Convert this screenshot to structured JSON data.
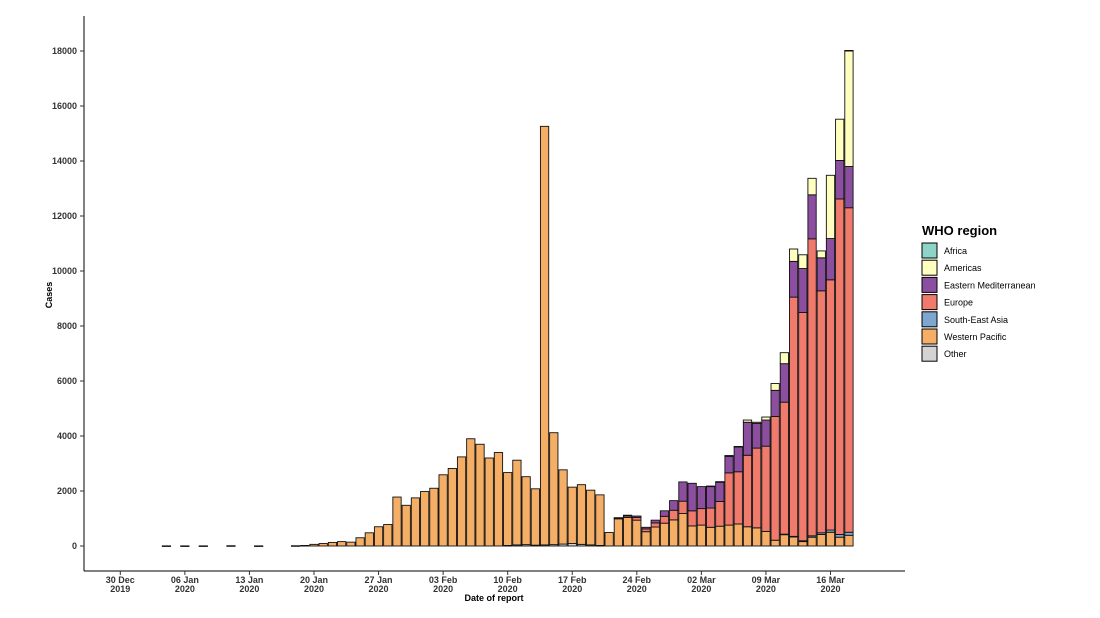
{
  "chart_data": {
    "type": "bar",
    "stacked": true,
    "title": "",
    "xlabel": "Date of report",
    "ylabel": "Cases",
    "ylim": [
      -900,
      19300
    ],
    "y_ticks": [
      0,
      2000,
      4000,
      6000,
      8000,
      10000,
      12000,
      14000,
      16000,
      18000
    ],
    "x_tick_labels": [
      {
        "day": 0,
        "line1": "30 Dec",
        "line2": "2019"
      },
      {
        "day": 7,
        "line1": "06 Jan",
        "line2": "2020"
      },
      {
        "day": 14,
        "line1": "13 Jan",
        "line2": "2020"
      },
      {
        "day": 21,
        "line1": "20 Jan",
        "line2": "2020"
      },
      {
        "day": 28,
        "line1": "27 Jan",
        "line2": "2020"
      },
      {
        "day": 35,
        "line1": "03 Feb",
        "line2": "2020"
      },
      {
        "day": 42,
        "line1": "10 Feb",
        "line2": "2020"
      },
      {
        "day": 49,
        "line1": "17 Feb",
        "line2": "2020"
      },
      {
        "day": 56,
        "line1": "24 Feb",
        "line2": "2020"
      },
      {
        "day": 63,
        "line1": "02 Mar",
        "line2": "2020"
      },
      {
        "day": 70,
        "line1": "09 Mar",
        "line2": "2020"
      },
      {
        "day": 77,
        "line1": "16 Mar",
        "line2": "2020"
      }
    ],
    "categories": [
      "Jan 04",
      "Jan 05",
      "Jan 06",
      "Jan 07",
      "Jan 08",
      "Jan 09",
      "Jan 10",
      "Jan 11",
      "Jan 12",
      "Jan 13",
      "Jan 14",
      "Jan 15",
      "Jan 16",
      "Jan 17",
      "Jan 18",
      "Jan 19",
      "Jan 20",
      "Jan 21",
      "Jan 22",
      "Jan 23",
      "Jan 24",
      "Jan 25",
      "Jan 26",
      "Jan 27",
      "Jan 28",
      "Jan 29",
      "Jan 30",
      "Jan 31",
      "Feb 01",
      "Feb 02",
      "Feb 03",
      "Feb 04",
      "Feb 05",
      "Feb 06",
      "Feb 07",
      "Feb 08",
      "Feb 09",
      "Feb 10",
      "Feb 11",
      "Feb 12",
      "Feb 13",
      "Feb 14",
      "Feb 15",
      "Feb 16",
      "Feb 17",
      "Feb 18",
      "Feb 19",
      "Feb 20",
      "Feb 21",
      "Feb 22",
      "Feb 23",
      "Feb 24",
      "Feb 25",
      "Feb 26",
      "Feb 27",
      "Feb 28",
      "Feb 29",
      "Mar 01",
      "Mar 02",
      "Mar 03",
      "Mar 04",
      "Mar 05",
      "Mar 06",
      "Mar 07",
      "Mar 08",
      "Mar 09",
      "Mar 10",
      "Mar 11",
      "Mar 12",
      "Mar 13",
      "Mar 14",
      "Mar 15",
      "Mar 16",
      "Mar 17",
      "Mar 18"
    ],
    "series": [
      {
        "name": "Africa",
        "color": "#8DD3C7",
        "values": [
          0,
          0,
          0,
          0,
          0,
          0,
          0,
          0,
          0,
          0,
          0,
          0,
          0,
          0,
          0,
          0,
          0,
          0,
          0,
          0,
          0,
          0,
          0,
          0,
          0,
          0,
          0,
          0,
          0,
          0,
          0,
          0,
          0,
          0,
          0,
          0,
          0,
          0,
          0,
          0,
          0,
          0,
          0,
          0,
          0,
          0,
          0,
          0,
          0,
          0,
          0,
          0,
          0,
          0,
          0,
          0,
          0,
          0,
          0,
          0,
          0,
          0,
          0,
          0,
          0,
          0,
          0,
          0,
          0,
          0,
          0,
          0,
          0,
          0,
          20
        ]
      },
      {
        "name": "Americas",
        "color": "#FFFFBF",
        "values": [
          0,
          0,
          0,
          0,
          0,
          0,
          0,
          0,
          0,
          0,
          0,
          0,
          0,
          0,
          0,
          0,
          0,
          0,
          0,
          0,
          0,
          0,
          0,
          0,
          0,
          0,
          0,
          0,
          0,
          0,
          0,
          0,
          0,
          0,
          0,
          0,
          0,
          0,
          0,
          0,
          0,
          0,
          0,
          0,
          0,
          0,
          0,
          0,
          0,
          0,
          0,
          0,
          0,
          0,
          0,
          0,
          0,
          0,
          0,
          20,
          20,
          30,
          20,
          80,
          40,
          110,
          250,
          400,
          450,
          500,
          600,
          250,
          2300,
          1500,
          4200
        ]
      },
      {
        "name": "Eastern Mediterranean",
        "color": "#8C4FA0",
        "values": [
          0,
          0,
          0,
          0,
          0,
          0,
          0,
          0,
          0,
          0,
          0,
          0,
          0,
          0,
          0,
          0,
          0,
          0,
          0,
          0,
          0,
          0,
          0,
          0,
          0,
          0,
          0,
          0,
          0,
          0,
          0,
          0,
          0,
          0,
          0,
          0,
          0,
          0,
          0,
          0,
          0,
          0,
          0,
          0,
          0,
          0,
          0,
          0,
          0,
          20,
          30,
          50,
          60,
          100,
          200,
          350,
          700,
          1000,
          800,
          780,
          700,
          600,
          900,
          1200,
          900,
          950,
          950,
          1400,
          1300,
          1600,
          1600,
          1200,
          1500,
          1400,
          1500
        ]
      },
      {
        "name": "Europe",
        "color": "#F07A6C",
        "values": [
          0,
          0,
          0,
          0,
          0,
          0,
          0,
          0,
          0,
          0,
          0,
          0,
          0,
          0,
          0,
          0,
          0,
          0,
          0,
          0,
          0,
          0,
          0,
          0,
          0,
          0,
          0,
          0,
          0,
          0,
          0,
          0,
          0,
          0,
          0,
          0,
          0,
          0,
          0,
          0,
          0,
          0,
          0,
          0,
          0,
          0,
          0,
          0,
          0,
          20,
          50,
          100,
          100,
          150,
          250,
          350,
          450,
          550,
          600,
          700,
          900,
          1900,
          1900,
          2600,
          2900,
          3100,
          4500,
          4800,
          8700,
          8300,
          10800,
          8800,
          9100,
          12200,
          11800
        ]
      },
      {
        "name": "South-East Asia",
        "color": "#7FA6CF",
        "values": [
          0,
          0,
          0,
          0,
          0,
          0,
          0,
          0,
          0,
          0,
          0,
          0,
          0,
          0,
          0,
          0,
          0,
          0,
          0,
          0,
          0,
          0,
          0,
          0,
          0,
          0,
          0,
          0,
          0,
          0,
          0,
          0,
          0,
          0,
          0,
          0,
          0,
          0,
          0,
          0,
          0,
          0,
          0,
          0,
          0,
          0,
          0,
          0,
          0,
          0,
          0,
          0,
          0,
          0,
          0,
          0,
          0,
          0,
          0,
          0,
          0,
          0,
          0,
          0,
          0,
          0,
          0,
          10,
          20,
          30,
          50,
          60,
          80,
          100,
          110
        ]
      },
      {
        "name": "Western Pacific",
        "color": "#F5AE66",
        "values": [
          5,
          0,
          5,
          0,
          5,
          0,
          0,
          10,
          0,
          0,
          5,
          0,
          0,
          0,
          10,
          20,
          60,
          90,
          130,
          160,
          140,
          300,
          480,
          700,
          780,
          1780,
          1480,
          1750,
          1980,
          2100,
          2590,
          2820,
          3240,
          3900,
          3700,
          3200,
          3400,
          2650,
          3080,
          2470,
          2050,
          15220,
          4070,
          2700,
          2050,
          2170,
          1990,
          1840,
          490,
          990,
          1040,
          940,
          520,
          690,
          830,
          950,
          1180,
          730,
          760,
          680,
          720,
          760,
          800,
          700,
          660,
          530,
          210,
          420,
          330,
          160,
          320,
          420,
          500,
          320,
          390
        ]
      },
      {
        "name": "Other",
        "color": "#D3D3D3",
        "values": [
          0,
          0,
          0,
          0,
          0,
          0,
          0,
          0,
          0,
          0,
          0,
          0,
          0,
          0,
          0,
          0,
          0,
          0,
          0,
          0,
          0,
          0,
          0,
          0,
          0,
          0,
          0,
          0,
          0,
          0,
          0,
          0,
          0,
          0,
          0,
          0,
          0,
          20,
          40,
          50,
          30,
          40,
          50,
          70,
          90,
          60,
          40,
          20,
          0,
          0,
          0,
          0,
          0,
          0,
          0,
          0,
          0,
          0,
          0,
          0,
          0,
          0,
          0,
          0,
          0,
          0,
          0,
          0,
          0,
          0,
          0,
          0,
          0,
          0,
          0
        ]
      }
    ],
    "legend": {
      "title": "WHO region",
      "position": "right"
    }
  }
}
